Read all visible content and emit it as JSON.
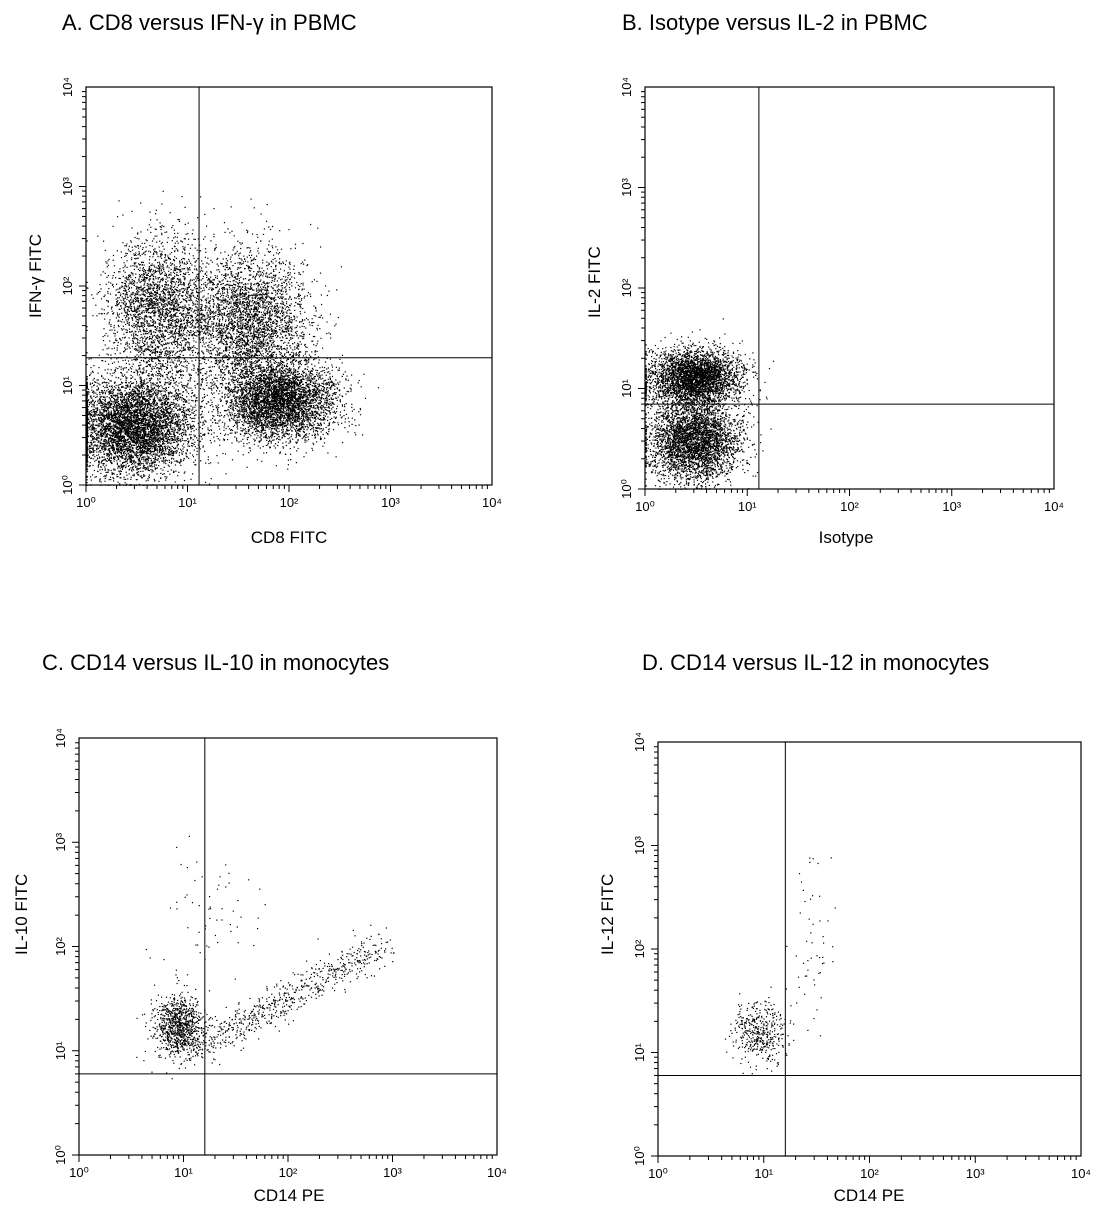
{
  "chart_data": [
    {
      "type": "scatter",
      "title": "A. CD8 versus IFN-γ in PBMC",
      "xlabel": "CD8 FITC",
      "ylabel": "IFN-γ FITC",
      "xscale": "log",
      "yscale": "log",
      "xlim": [
        1,
        10000
      ],
      "ylim": [
        1,
        10000
      ],
      "tick_labels": [
        "10⁰",
        "10¹",
        "10²",
        "10³",
        "10⁴"
      ],
      "quadrant_gate": {
        "x": 13,
        "y": 19
      },
      "grid": false,
      "populations": [
        {
          "center_x": 3,
          "center_y": 4,
          "spread_x": 0.3,
          "spread_y": 0.25,
          "count": 5200
        },
        {
          "center_x": 80,
          "center_y": 7,
          "spread_x": 0.28,
          "spread_y": 0.2,
          "count": 4200
        },
        {
          "center_x": 40,
          "center_y": 45,
          "spread_x": 0.3,
          "spread_y": 0.35,
          "count": 3200
        },
        {
          "center_x": 5,
          "center_y": 60,
          "spread_x": 0.25,
          "spread_y": 0.35,
          "count": 2600
        }
      ]
    },
    {
      "type": "scatter",
      "title": "B. Isotype versus IL-2 in PBMC",
      "xlabel": "Isotype",
      "ylabel": "IL-2 FITC",
      "xscale": "log",
      "yscale": "log",
      "xlim": [
        1,
        10000
      ],
      "ylim": [
        1,
        10000
      ],
      "tick_labels": [
        "10⁰",
        "10¹",
        "10²",
        "10³",
        "10⁴"
      ],
      "quadrant_gate": {
        "x": 13,
        "y": 7
      },
      "grid": false,
      "populations": [
        {
          "center_x": 3,
          "center_y": 13,
          "spread_x": 0.22,
          "spread_y": 0.14,
          "count": 3500
        },
        {
          "center_x": 3,
          "center_y": 3,
          "spread_x": 0.22,
          "spread_y": 0.2,
          "count": 3500
        }
      ]
    },
    {
      "type": "scatter",
      "title": "C. CD14 versus IL-10 in monocytes",
      "xlabel": "CD14 PE",
      "ylabel": "IL-10 FITC",
      "xscale": "log",
      "yscale": "log",
      "xlim": [
        1,
        10000
      ],
      "ylim": [
        1,
        10000
      ],
      "tick_labels": [
        "10⁰",
        "10¹",
        "10²",
        "10³",
        "10⁴"
      ],
      "quadrant_gate": {
        "x": 16,
        "y": 6
      },
      "grid": false,
      "populations": [
        {
          "center_x": 9,
          "center_y": 17,
          "spread_x": 0.12,
          "spread_y": 0.15,
          "count": 900
        },
        {
          "center_x": 60,
          "center_y": 40,
          "spread_x": 0.35,
          "spread_y": 0.18,
          "count": 650
        },
        {
          "center_x": 20,
          "center_y": 200,
          "spread_x": 0.25,
          "spread_y": 0.35,
          "count": 60
        }
      ]
    },
    {
      "type": "scatter",
      "title": "D. CD14 versus IL-12 in monocytes",
      "xlabel": "CD14 PE",
      "ylabel": "IL-12 FITC",
      "xscale": "log",
      "yscale": "log",
      "xlim": [
        1,
        10000
      ],
      "ylim": [
        1,
        10000
      ],
      "tick_labels": [
        "10⁰",
        "10¹",
        "10²",
        "10³",
        "10⁴"
      ],
      "quadrant_gate": {
        "x": 16,
        "y": 6
      },
      "grid": false,
      "populations": [
        {
          "center_x": 9,
          "center_y": 16,
          "spread_x": 0.12,
          "spread_y": 0.15,
          "count": 420
        },
        {
          "center_x": 28,
          "center_y": 150,
          "spread_x": 0.1,
          "spread_y": 0.45,
          "count": 50
        }
      ]
    }
  ]
}
